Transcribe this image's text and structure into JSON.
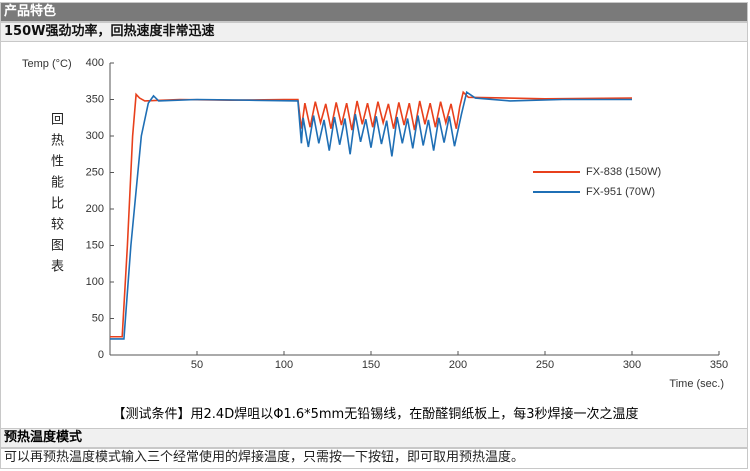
{
  "header": {
    "title": "产品特色"
  },
  "section1": {
    "title": "150W强劲功率，回热速度非常迅速",
    "chart_label": "回热性能比较图表",
    "caption": "【测试条件】用2.4D焊咀以Φ1.6*5mm无铅锡线，在酚醛铜纸板上，每3秒焊接一次之温度"
  },
  "chart_data": {
    "type": "line",
    "y_label": "Temp (°C)",
    "x_label": "Time (sec.)",
    "xlim": [
      0,
      350
    ],
    "xticks": [
      0,
      50,
      100,
      150,
      200,
      250,
      300,
      350
    ],
    "ylim": [
      0,
      400
    ],
    "yticks": [
      0,
      50,
      100,
      150,
      200,
      250,
      300,
      350,
      400
    ],
    "series": [
      {
        "name": "FX-838 (150W)",
        "color": "#e8401c",
        "x": [
          0,
          7,
          10,
          13,
          15,
          17,
          20,
          40,
          70,
          100,
          108,
          110,
          112,
          115,
          118,
          121,
          124,
          127,
          130,
          133,
          136,
          139,
          142,
          145,
          148,
          151,
          154,
          157,
          160,
          163,
          166,
          169,
          172,
          175,
          178,
          181,
          184,
          187,
          190,
          193,
          196,
          199,
          201,
          203,
          206,
          250,
          300
        ],
        "values": [
          25,
          25,
          150,
          300,
          357,
          352,
          348,
          350,
          349,
          350,
          350,
          310,
          345,
          312,
          347,
          318,
          344,
          310,
          346,
          315,
          345,
          308,
          348,
          316,
          345,
          312,
          347,
          318,
          344,
          310,
          346,
          315,
          345,
          308,
          348,
          316,
          345,
          312,
          347,
          318,
          344,
          310,
          340,
          360,
          353,
          351,
          352
        ]
      },
      {
        "name": "FX-951 (70W)",
        "color": "#1f6fb5",
        "x": [
          0,
          8,
          12,
          18,
          22,
          25,
          28,
          50,
          80,
          108,
          110,
          111,
          114,
          117,
          120,
          123,
          126,
          129,
          132,
          135,
          138,
          141,
          144,
          147,
          150,
          153,
          156,
          159,
          162,
          165,
          168,
          171,
          174,
          177,
          180,
          183,
          186,
          189,
          192,
          195,
          198,
          202,
          205,
          210,
          230,
          260,
          300
        ],
        "values": [
          22,
          22,
          150,
          300,
          345,
          355,
          348,
          350,
          349,
          348,
          290,
          325,
          285,
          328,
          290,
          322,
          280,
          326,
          288,
          324,
          275,
          330,
          292,
          323,
          284,
          327,
          289,
          321,
          272,
          326,
          290,
          324,
          283,
          328,
          287,
          322,
          280,
          325,
          291,
          327,
          286,
          330,
          360,
          352,
          348,
          350,
          350
        ]
      }
    ]
  },
  "section2": {
    "title": "预热温度模式",
    "text": "可以再预热温度模式输入三个经常使用的焊接温度，只需按一下按钮，即可取用预热温度。"
  }
}
